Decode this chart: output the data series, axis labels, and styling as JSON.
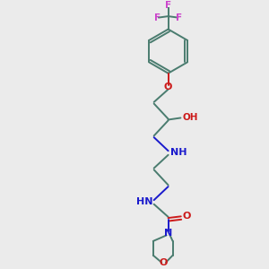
{
  "background_color": "#ebebeb",
  "bond_color": "#4a7c6f",
  "nitrogen_color": "#1a1acc",
  "oxygen_color": "#cc1a1a",
  "fluorine_color": "#cc44cc",
  "figsize": [
    3.0,
    3.0
  ],
  "dpi": 100,
  "xlim": [
    0,
    10
  ],
  "ylim": [
    0,
    10
  ]
}
